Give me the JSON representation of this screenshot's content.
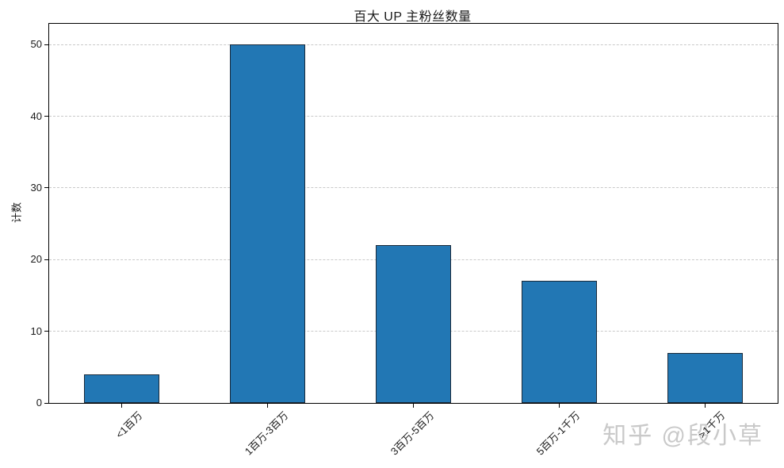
{
  "watermark": {
    "text": "知乎 @段小草",
    "color": "#c9c9c9"
  },
  "chart_data": {
    "type": "bar",
    "title": "百大 UP 主粉丝数量",
    "categories": [
      "<1百万",
      "1百万-3百万",
      "3百万-5百万",
      "5百万-1千万",
      ">1千万"
    ],
    "values": [
      4,
      50,
      22,
      17,
      7
    ],
    "xlabel": "",
    "ylabel": "计数",
    "yticks": [
      0,
      10,
      20,
      30,
      40,
      50
    ],
    "ylim": [
      0,
      52.9
    ],
    "grid": "horizontal-dashed",
    "legend": "none",
    "x_tick_rotation_deg": 45,
    "bar_color": "#2277b4",
    "bar_edge_color": "#1a2a3a",
    "grid_color": "#c9c9c9",
    "axis_color": "#000000",
    "text_color": "#1a1a1a"
  }
}
